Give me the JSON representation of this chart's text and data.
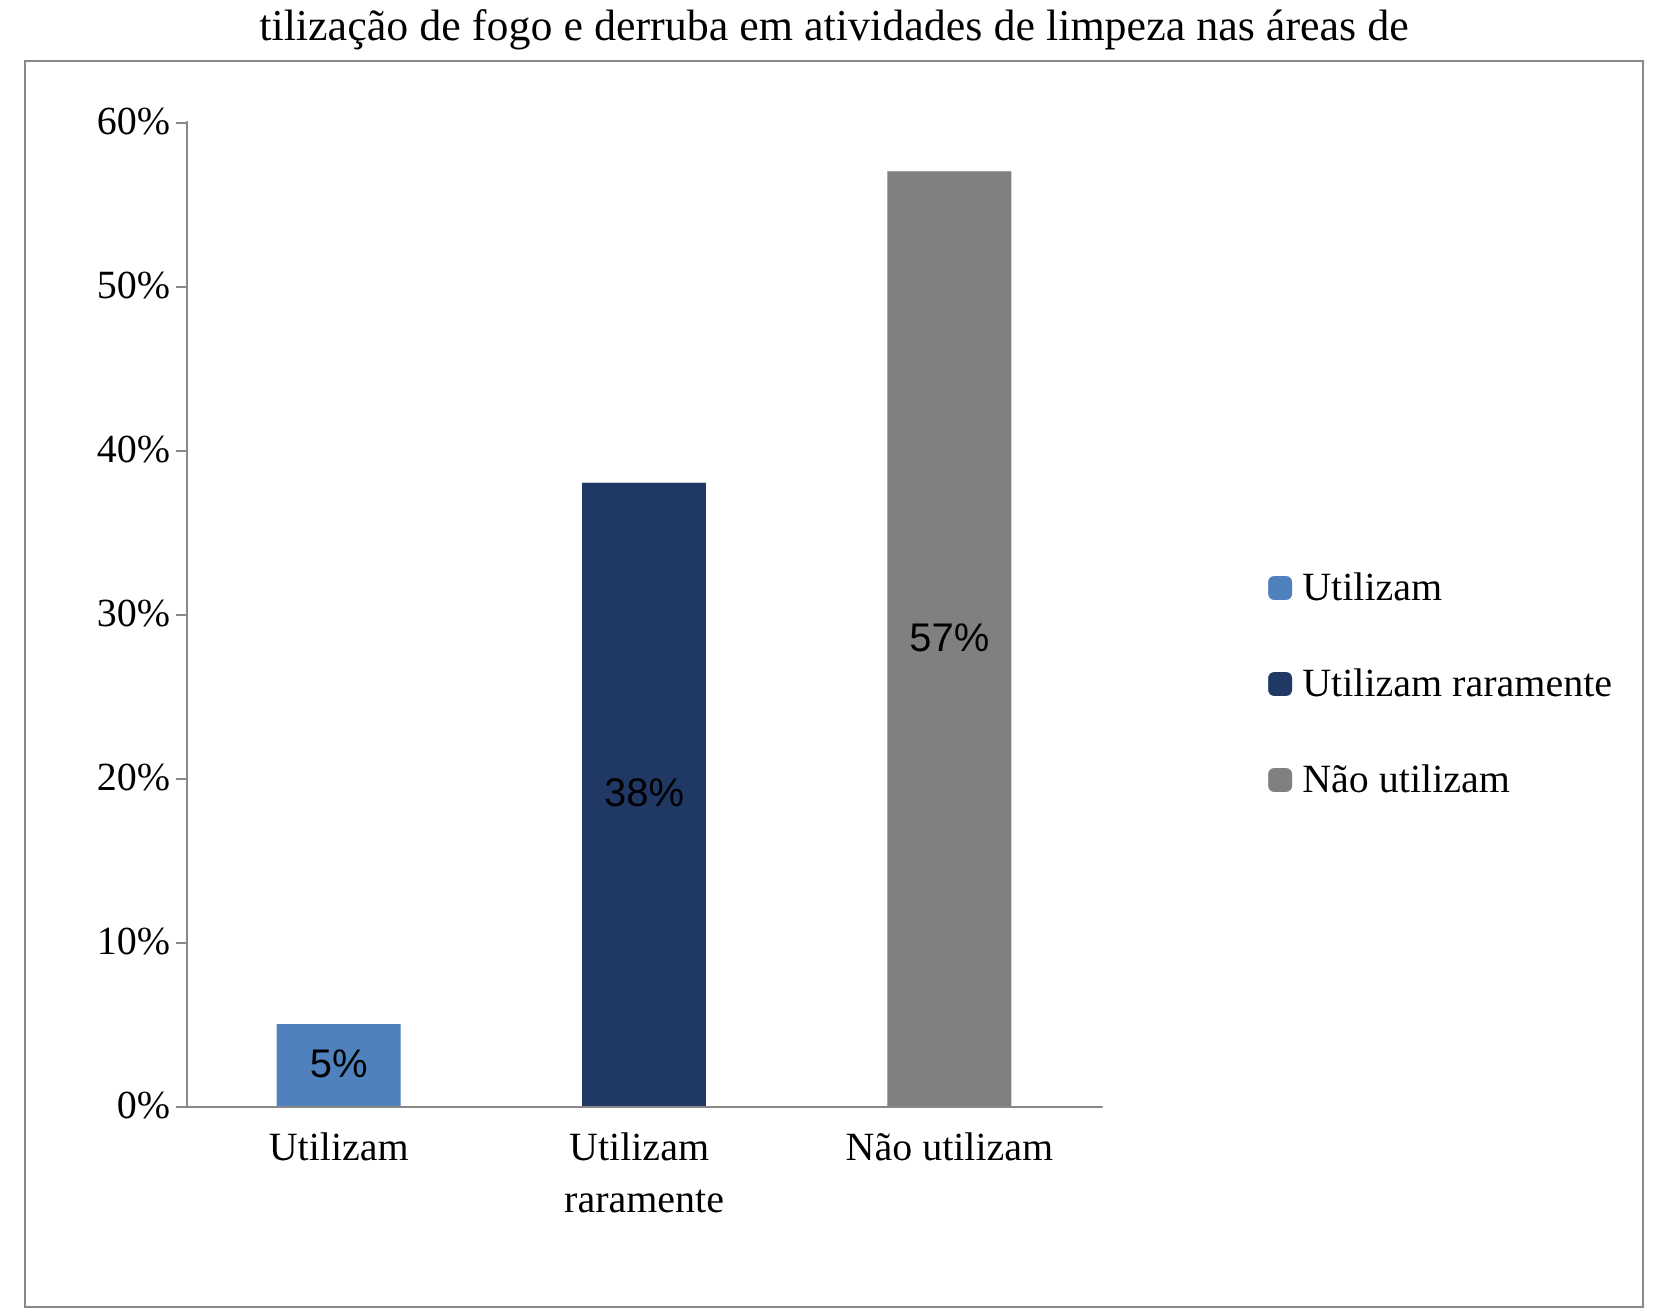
{
  "chart_data": {
    "type": "bar",
    "title": "tilização de fogo e derruba em atividades de limpeza nas áreas de",
    "categories": [
      "Utilizam",
      "Utilizam raramente",
      "Não utilizam"
    ],
    "series": [
      {
        "name": "Utilizam",
        "color": "#4f81bd",
        "values": [
          5,
          null,
          null
        ],
        "value_labels": [
          "5%",
          null,
          null
        ]
      },
      {
        "name": "Utilizam raramente",
        "color": "#1f3864",
        "values": [
          null,
          38,
          null
        ],
        "value_labels": [
          null,
          "38%",
          null
        ]
      },
      {
        "name": "Não utilizam",
        "color": "#808080",
        "values": [
          null,
          null,
          57
        ],
        "value_labels": [
          null,
          null,
          "57%"
        ]
      }
    ],
    "ylim": [
      0,
      60
    ],
    "yticks": [
      {
        "value": 0,
        "label": "0%"
      },
      {
        "value": 10,
        "label": "10%"
      },
      {
        "value": 20,
        "label": "20%"
      },
      {
        "value": 30,
        "label": "30%"
      },
      {
        "value": 40,
        "label": "40%"
      },
      {
        "value": 50,
        "label": "50%"
      },
      {
        "value": 60,
        "label": "60%"
      }
    ],
    "grid": false,
    "legend": "right"
  }
}
